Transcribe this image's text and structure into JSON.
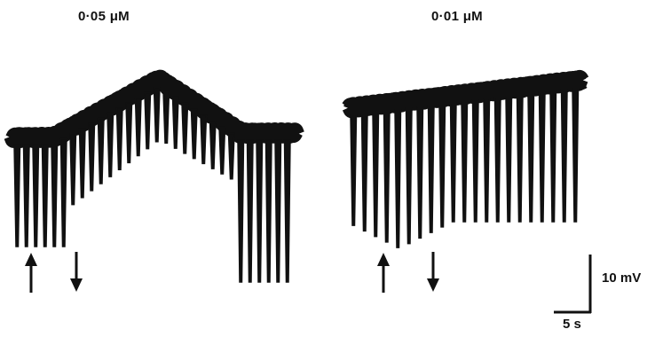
{
  "panels": {
    "left": {
      "label": "0·05 μM"
    },
    "right": {
      "label": "0·01 μM"
    }
  },
  "scale_bar": {
    "vertical": "10 mV",
    "horizontal": "5 s"
  },
  "colors": {
    "trace": "#111111",
    "background": "#ffffff"
  },
  "markers": {
    "left": [
      "arrow-up",
      "arrow-down"
    ],
    "right": [
      "arrow-up",
      "arrow-down"
    ]
  }
}
